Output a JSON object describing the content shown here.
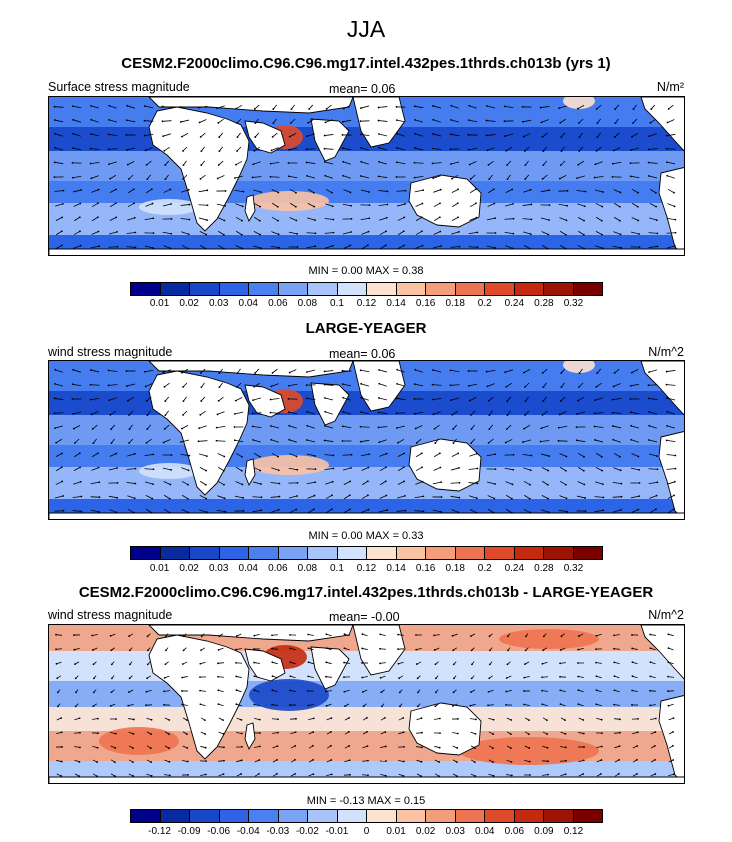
{
  "title": "JJA",
  "panels": [
    {
      "title": "CESM2.F2000climo.C96.C96.mg17.intel.432pes.1thrds.ch013b (yrs 1)",
      "label_left": "Surface stress magnitude",
      "mean_text": "mean=   0.06",
      "units": "N/m²",
      "minmax_text": "MIN =   0.00 MAX =   0.38",
      "colorbar_labels": [
        "0.01",
        "0.02",
        "0.03",
        "0.04",
        "0.06",
        "0.08",
        "0.1",
        "0.12",
        "0.14",
        "0.16",
        "0.18",
        "0.2",
        "0.24",
        "0.28",
        "0.32"
      ],
      "colors": [
        "#00008b",
        "#0a2aa0",
        "#1848c8",
        "#2d64e6",
        "#4a80f0",
        "#7aa3f5",
        "#a8c4fa",
        "#d2e2fc",
        "#fde2d0",
        "#fbc2a4",
        "#f59c7a",
        "#ee7350",
        "#e04a28",
        "#c42a10",
        "#9e1404",
        "#7a0000"
      ]
    },
    {
      "title": "LARGE-YEAGER",
      "label_left": "wind stress magnitude",
      "mean_text": "mean=   0.06",
      "units": "N/m^2",
      "minmax_text": "MIN =   0.00 MAX =   0.33",
      "colorbar_labels": [
        "0.01",
        "0.02",
        "0.03",
        "0.04",
        "0.06",
        "0.08",
        "0.1",
        "0.12",
        "0.14",
        "0.16",
        "0.18",
        "0.2",
        "0.24",
        "0.28",
        "0.32"
      ],
      "colors": [
        "#00008b",
        "#0a2aa0",
        "#1848c8",
        "#2d64e6",
        "#4a80f0",
        "#7aa3f5",
        "#a8c4fa",
        "#d2e2fc",
        "#fde2d0",
        "#fbc2a4",
        "#f59c7a",
        "#ee7350",
        "#e04a28",
        "#c42a10",
        "#9e1404",
        "#7a0000"
      ]
    },
    {
      "title": "CESM2.F2000climo.C96.C96.mg17.intel.432pes.1thrds.ch013b - LARGE-YEAGER",
      "label_left": "wind stress magnitude",
      "mean_text": "mean=  -0.00",
      "units": "N/m^2",
      "minmax_text": "MIN =  -0.13 MAX =   0.15",
      "colorbar_labels": [
        "-0.12",
        "-0.09",
        "-0.06",
        "-0.04",
        "-0.03",
        "-0.02",
        "-0.01",
        "0",
        "0.01",
        "0.02",
        "0.03",
        "0.04",
        "0.06",
        "0.09",
        "0.12"
      ],
      "colors": [
        "#00008b",
        "#0a2aa0",
        "#1848c8",
        "#2d64e6",
        "#4a80f0",
        "#7aa3f5",
        "#a8c4fa",
        "#d2e2fc",
        "#fde2d0",
        "#fbc2a4",
        "#f59c7a",
        "#ee7350",
        "#e04a28",
        "#c42a10",
        "#9e1404",
        "#7a0000"
      ]
    }
  ]
}
